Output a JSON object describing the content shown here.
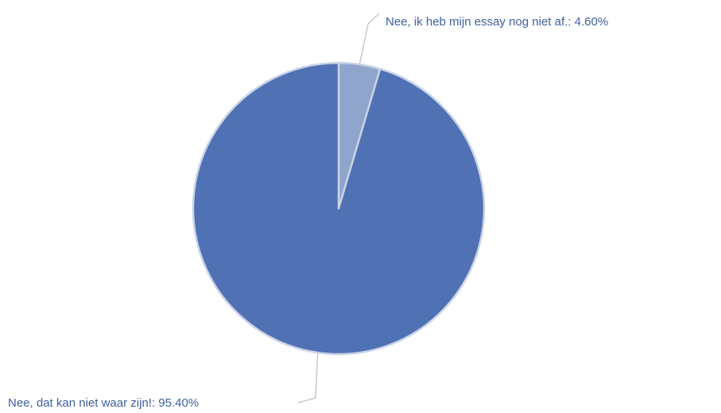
{
  "chart_data": {
    "type": "pie",
    "title": "",
    "slices": [
      {
        "label": "Nee, ik heb mijn essay nog niet af.: 4.60%",
        "value": 4.6,
        "color": "#8fa5cc"
      },
      {
        "label": "Nee, dat kan niet waar zijn!: 95.40%",
        "value": 95.4,
        "color": "#5071b4"
      }
    ],
    "slice_border_color": "#c9d3e6",
    "leader_color": "#c4c8cf",
    "label_color": "#3f5f9e",
    "legend": "none"
  }
}
